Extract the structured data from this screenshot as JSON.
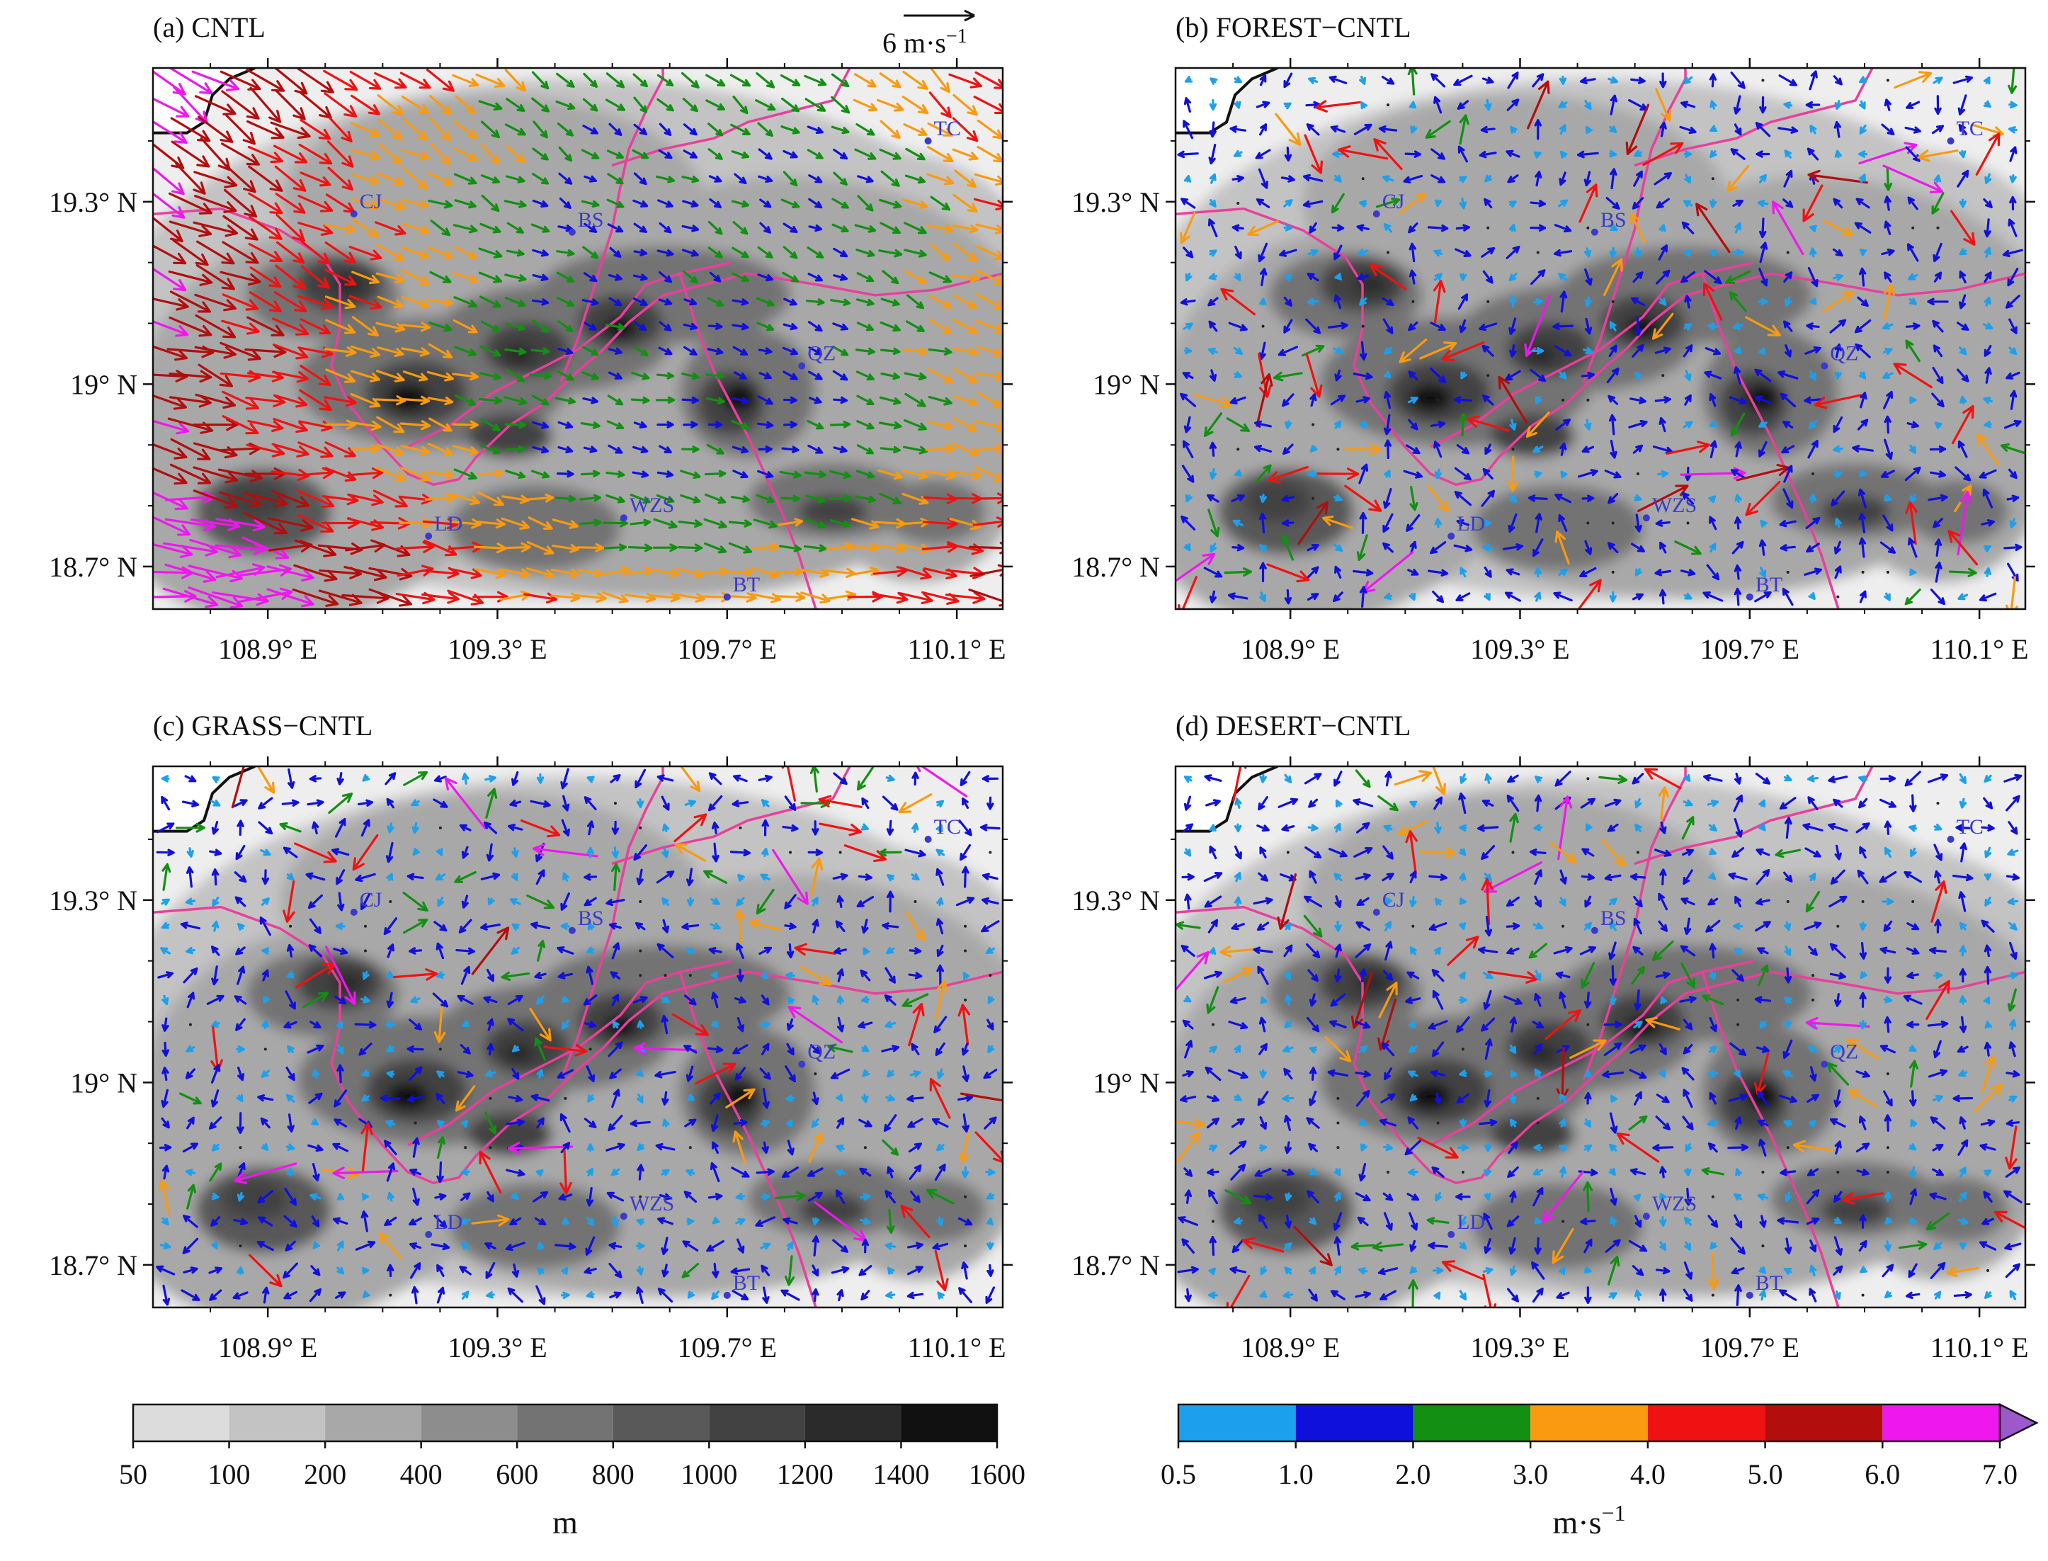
{
  "figure": {
    "panels": [
      {
        "id": "a",
        "title": "(a) CNTL",
        "mode": "full"
      },
      {
        "id": "b",
        "title": "(b) FOREST−CNTL",
        "mode": "diff"
      },
      {
        "id": "c",
        "title": "(c) GRASS−CNTL",
        "mode": "diff"
      },
      {
        "id": "d",
        "title": "(d) DESERT−CNTL",
        "mode": "diff"
      }
    ],
    "axes": {
      "lon_ticks": [
        "108.9° E",
        "109.3° E",
        "109.7° E",
        "110.1° E"
      ],
      "lat_ticks": [
        "19.3° N",
        "19° N",
        "18.7° N"
      ],
      "lon_values": [
        108.9,
        109.3,
        109.7,
        110.1
      ],
      "lat_values": [
        19.3,
        19.0,
        18.7
      ],
      "lon_range": [
        108.7,
        110.18
      ],
      "lat_range": [
        18.63,
        19.52
      ]
    },
    "reference_vector": {
      "label": "6 m·s",
      "exponent": "−1",
      "speed": 6
    },
    "cities": [
      {
        "name": "CJ",
        "lon": 109.05,
        "lat": 19.28
      },
      {
        "name": "BS",
        "lon": 109.43,
        "lat": 19.25
      },
      {
        "name": "TC",
        "lon": 110.05,
        "lat": 19.4
      },
      {
        "name": "QZ",
        "lon": 109.83,
        "lat": 19.03
      },
      {
        "name": "LD",
        "lon": 109.18,
        "lat": 18.75
      },
      {
        "name": "WZS",
        "lon": 109.52,
        "lat": 18.78
      },
      {
        "name": "BT",
        "lon": 109.7,
        "lat": 18.65
      }
    ],
    "terrain_colorbar": {
      "ticks": [
        "50",
        "100",
        "200",
        "400",
        "600",
        "800",
        "1000",
        "1200",
        "1400",
        "1600"
      ],
      "unit_label": "m",
      "colors": [
        "#dcdcdc",
        "#c3c3c3",
        "#a8a8a8",
        "#8d8d8d",
        "#737373",
        "#595959",
        "#424242",
        "#2b2b2b",
        "#111111"
      ]
    },
    "wind_colorbar": {
      "ticks": [
        "0.5",
        "1.0",
        "2.0",
        "3.0",
        "4.0",
        "5.0",
        "6.0",
        "7.0"
      ],
      "unit_label": "m·s",
      "unit_exponent": "−1",
      "colors": [
        "#1ca0ee",
        "#1010dd",
        "#138f13",
        "#f99a10",
        "#f01212",
        "#b30d0d",
        "#ee18ee"
      ],
      "extend_color": "#9b59c9"
    },
    "colors": {
      "boundary": "#e8409c",
      "coast": "#111111",
      "city": "#3a3acc"
    }
  }
}
